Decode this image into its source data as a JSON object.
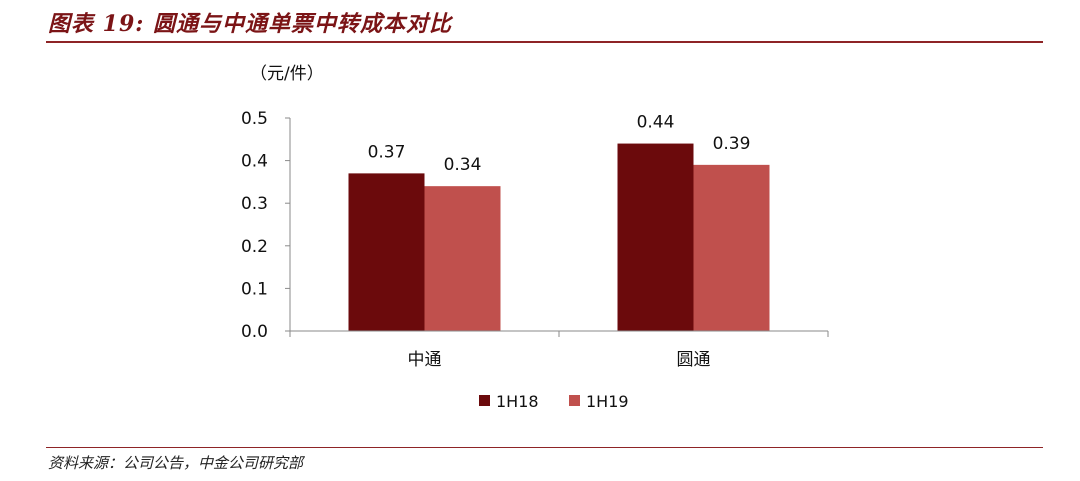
{
  "figure": {
    "title": "图表 19:  圆通与中通单票中转成本对比",
    "source": "资料来源：公司公告，中金公司研究部"
  },
  "chart_data": {
    "type": "bar",
    "unit": "（元/件）",
    "categories": [
      "中通",
      "圆通"
    ],
    "series": [
      {
        "name": "1H18",
        "values": [
          0.37,
          0.44
        ],
        "color": "#6b0a0c"
      },
      {
        "name": "1H19",
        "values": [
          0.34,
          0.39
        ],
        "color": "#c0504d"
      }
    ],
    "data_labels": [
      [
        "0.37",
        "0.44"
      ],
      [
        "0.34",
        "0.39"
      ]
    ],
    "ylim": [
      0,
      0.5
    ],
    "yticks": [
      "0.0",
      "0.1",
      "0.2",
      "0.3",
      "0.4",
      "0.5"
    ],
    "grid": false,
    "legend_position": "bottom"
  }
}
